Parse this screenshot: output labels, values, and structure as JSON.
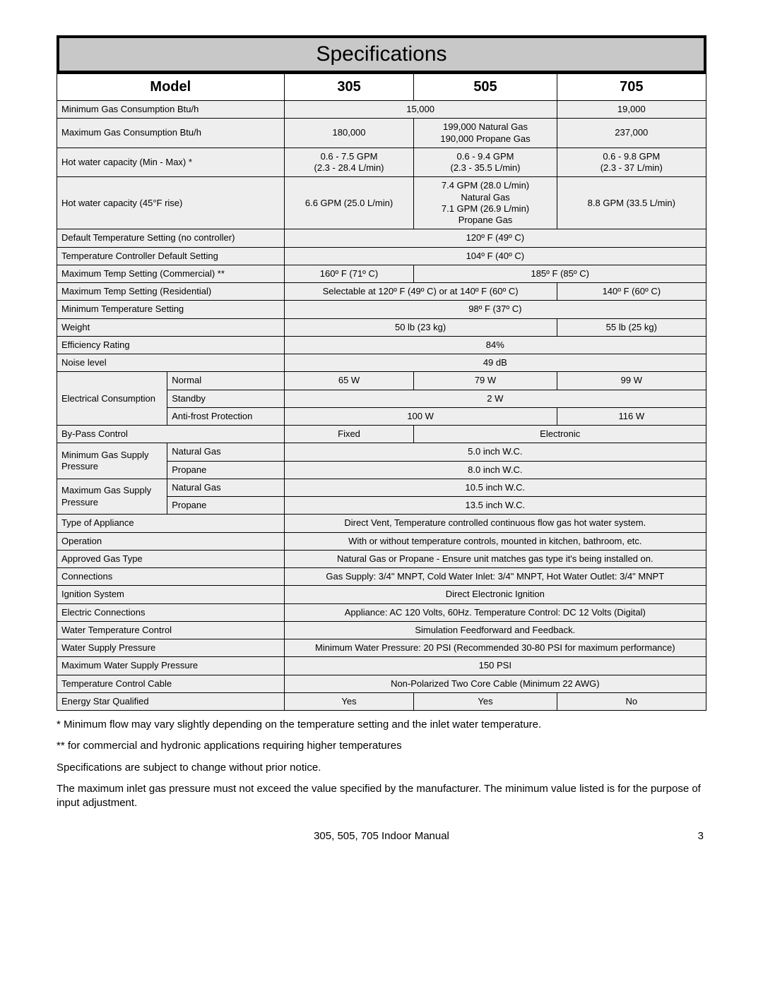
{
  "title": "Specifications",
  "header": {
    "model": "Model",
    "c305": "305",
    "c505": "505",
    "c705": "705"
  },
  "col_widths": {
    "label_a": "17%",
    "label_b": "18%",
    "c305": "20%",
    "c505": "22%",
    "c705": "23%"
  },
  "colors": {
    "title_bg": "#c8c8c8",
    "row_bg": "#eeeeee",
    "border": "#000000"
  },
  "rows": {
    "min_gas": {
      "label": "Minimum Gas Consumption Btu/h",
      "v305_505": "15,000",
      "v705": "19,000"
    },
    "max_gas": {
      "label": "Maximum Gas Consumption Btu/h",
      "v305": "180,000",
      "v505": "199,000 Natural Gas\n190,000 Propane Gas",
      "v705": "237,000"
    },
    "hot_cap": {
      "label": "Hot water capacity (Min - Max) *",
      "v305": "0.6 - 7.5 GPM\n(2.3 - 28.4 L/min)",
      "v505": "0.6 - 9.4 GPM\n(2.3 - 35.5 L/min)",
      "v705": "0.6 - 9.8 GPM\n(2.3 - 37 L/min)"
    },
    "hot_cap_45": {
      "label": "Hot water capacity (45°F rise)",
      "v305": "6.6 GPM (25.0 L/min)",
      "v505": "7.4 GPM (28.0 L/min)\nNatural Gas\n7.1 GPM (26.9 L/min)\nPropane Gas",
      "v705": "8.8 GPM   (33.5 L/min)"
    },
    "def_temp": {
      "label": "Default Temperature Setting (no controller)",
      "value": "120º F (49º C)"
    },
    "ctrl_def": {
      "label": "Temperature Controller Default Setting",
      "value": "104º F (40º C)"
    },
    "max_comm": {
      "label": "Maximum Temp Setting (Commercial) **",
      "v305": "160º F (71º C)",
      "v505_705": "185º F (85º C)"
    },
    "max_res": {
      "label": "Maximum Temp Setting (Residential)",
      "v305_505": "Selectable at 120º F (49º C) or at 140º F (60º C)",
      "v705": "140º F (60º C)"
    },
    "min_temp": {
      "label": "Minimum Temperature Setting",
      "value": "98º F (37º C)"
    },
    "weight": {
      "label": "Weight",
      "v305_505": "50 lb (23 kg)",
      "v705": "55 lb (25 kg)"
    },
    "eff": {
      "label": "Efficiency Rating",
      "value": "84%"
    },
    "noise": {
      "label": "Noise level",
      "value": "49 dB"
    },
    "elec": {
      "label": "Electrical Consumption",
      "normal": {
        "label": "Normal",
        "v305": "65 W",
        "v505": "79 W",
        "v705": "99 W"
      },
      "standby": {
        "label": "Standby",
        "value": "2 W"
      },
      "antifrost": {
        "label": "Anti-frost Protection",
        "v305_505": "100 W",
        "v705": "116 W"
      }
    },
    "bypass": {
      "label": "By-Pass Control",
      "v305": "Fixed",
      "v505_705": "Electronic"
    },
    "min_supply": {
      "label": "Minimum Gas Supply Pressure",
      "ng": {
        "label": "Natural Gas",
        "value": "5.0 inch W.C."
      },
      "lp": {
        "label": "Propane",
        "value": "8.0 inch W.C."
      }
    },
    "max_supply": {
      "label": "Maximum Gas Supply Pressure",
      "ng": {
        "label": "Natural Gas",
        "value": "10.5 inch W.C."
      },
      "lp": {
        "label": "Propane",
        "value": "13.5 inch W.C."
      }
    },
    "type": {
      "label": "Type of Appliance",
      "value": "Direct Vent, Temperature controlled continuous flow gas hot water system."
    },
    "operation": {
      "label": "Operation",
      "value": "With or without temperature controls, mounted in kitchen, bathroom, etc."
    },
    "gas_type": {
      "label": "Approved Gas Type",
      "value": "Natural Gas or Propane - Ensure unit matches gas type it's being installed on."
    },
    "connections": {
      "label": "Connections",
      "value": "Gas Supply: 3/4\" MNPT, Cold Water Inlet: 3/4\" MNPT, Hot Water Outlet: 3/4\" MNPT"
    },
    "ignition": {
      "label": "Ignition System",
      "value": "Direct Electronic Ignition"
    },
    "elec_conn": {
      "label": "Electric Connections",
      "value": "Appliance: AC 120 Volts, 60Hz. Temperature Control: DC 12 Volts (Digital)"
    },
    "wtc": {
      "label": "Water Temperature Control",
      "value": "Simulation Feedforward and Feedback."
    },
    "wsp": {
      "label": "Water Supply Pressure",
      "value": "Minimum Water Pressure: 20 PSI (Recommended 30-80 PSI for maximum performance)"
    },
    "max_wsp": {
      "label": "Maximum Water Supply Pressure",
      "value": "150 PSI"
    },
    "tcc": {
      "label": "Temperature Control Cable",
      "value": "Non-Polarized Two Core Cable (Minimum 22 AWG)"
    },
    "estar": {
      "label": "Energy Star Qualified",
      "v305": "Yes",
      "v505": "Yes",
      "v705": "No"
    }
  },
  "notes": [
    "* Minimum flow may vary slightly depending on the temperature setting and the inlet water temperature.",
    "** for commercial and hydronic applications requiring higher temperatures",
    "Specifications are subject to change without prior notice.",
    "The maximum inlet gas pressure must not exceed the value specified by the manufacturer.  The minimum value listed is for the purpose of input adjustment."
  ],
  "footer": {
    "center": "305, 505, 705 Indoor Manual",
    "page": "3"
  }
}
